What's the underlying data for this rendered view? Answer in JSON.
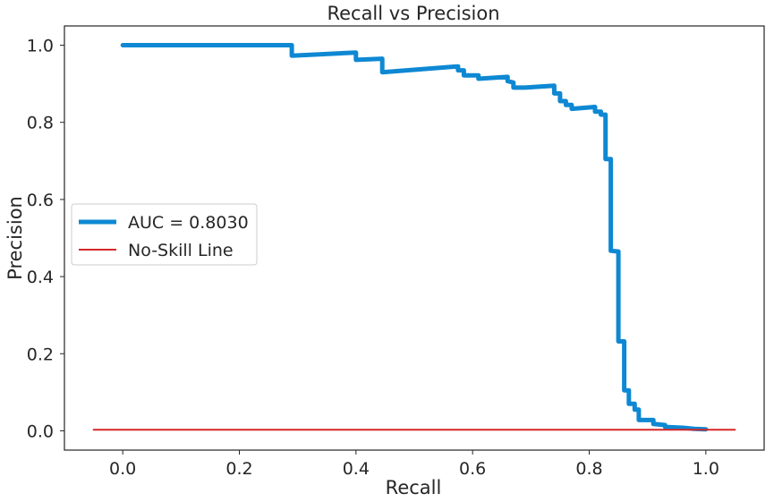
{
  "chart_data": {
    "type": "line",
    "title": "Recall vs Precision",
    "xlabel": "Recall",
    "ylabel": "Precision",
    "xlim": [
      -0.1,
      1.1
    ],
    "ylim": [
      -0.05,
      1.05
    ],
    "xticks": [
      "0.0",
      "0.2",
      "0.4",
      "0.6",
      "0.8",
      "1.0"
    ],
    "yticks": [
      "0.0",
      "0.2",
      "0.4",
      "0.6",
      "0.8",
      "1.0"
    ],
    "grid": false,
    "legend_position": "center-left",
    "series": [
      {
        "name": "AUC = 0.8030",
        "color": "#0e88d3",
        "points": [
          [
            0.0,
            1.0
          ],
          [
            0.29,
            1.0
          ],
          [
            0.29,
            0.973
          ],
          [
            0.4,
            0.981
          ],
          [
            0.4,
            0.962
          ],
          [
            0.445,
            0.965
          ],
          [
            0.445,
            0.93
          ],
          [
            0.575,
            0.945
          ],
          [
            0.575,
            0.935
          ],
          [
            0.585,
            0.935
          ],
          [
            0.585,
            0.922
          ],
          [
            0.61,
            0.922
          ],
          [
            0.61,
            0.913
          ],
          [
            0.66,
            0.918
          ],
          [
            0.66,
            0.907
          ],
          [
            0.67,
            0.903
          ],
          [
            0.67,
            0.89
          ],
          [
            0.69,
            0.89
          ],
          [
            0.74,
            0.895
          ],
          [
            0.74,
            0.875
          ],
          [
            0.75,
            0.875
          ],
          [
            0.75,
            0.855
          ],
          [
            0.76,
            0.855
          ],
          [
            0.76,
            0.845
          ],
          [
            0.77,
            0.845
          ],
          [
            0.77,
            0.835
          ],
          [
            0.81,
            0.84
          ],
          [
            0.81,
            0.828
          ],
          [
            0.82,
            0.828
          ],
          [
            0.82,
            0.82
          ],
          [
            0.828,
            0.82
          ],
          [
            0.828,
            0.705
          ],
          [
            0.837,
            0.705
          ],
          [
            0.837,
            0.467
          ],
          [
            0.85,
            0.465
          ],
          [
            0.85,
            0.232
          ],
          [
            0.86,
            0.232
          ],
          [
            0.86,
            0.105
          ],
          [
            0.868,
            0.105
          ],
          [
            0.868,
            0.07
          ],
          [
            0.878,
            0.07
          ],
          [
            0.878,
            0.055
          ],
          [
            0.885,
            0.055
          ],
          [
            0.885,
            0.028
          ],
          [
            0.91,
            0.028
          ],
          [
            0.91,
            0.018
          ],
          [
            0.93,
            0.015
          ],
          [
            0.93,
            0.01
          ],
          [
            0.96,
            0.008
          ],
          [
            0.98,
            0.005
          ],
          [
            1.0,
            0.004
          ]
        ]
      },
      {
        "name": "No-Skill Line",
        "color": "#d62728",
        "points": [
          [
            -0.05,
            0.003
          ],
          [
            1.05,
            0.003
          ]
        ]
      }
    ]
  }
}
